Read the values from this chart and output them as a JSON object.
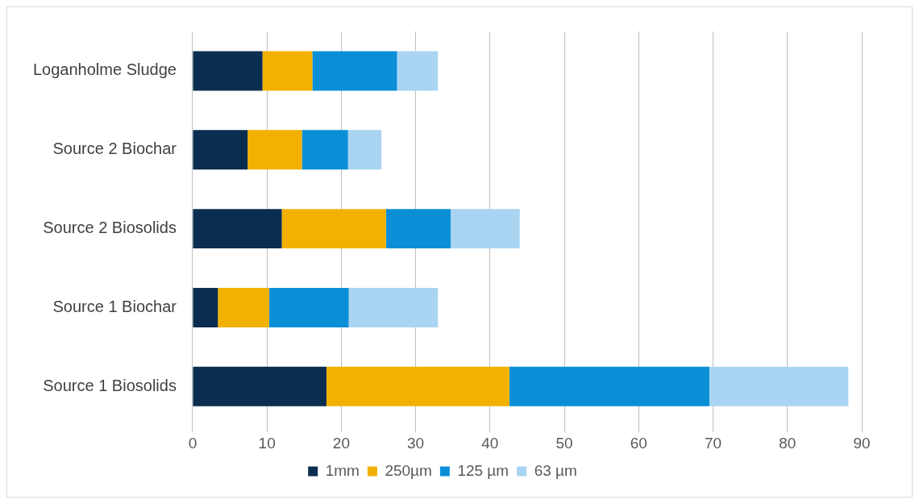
{
  "chart_data": {
    "type": "bar",
    "orientation": "horizontal",
    "stacked": true,
    "categories": [
      "Loganholme Sludge",
      "Source 2 Biochar",
      "Source 2 Biosolids",
      "Source 1 Biochar",
      "Source 1 Biosolids"
    ],
    "series": [
      {
        "name": "1mm",
        "color": "#0b2d4f",
        "values": [
          9.4,
          7.4,
          12.0,
          3.4,
          18.0
        ]
      },
      {
        "name": "250µm",
        "color": "#f2b100",
        "values": [
          6.7,
          7.3,
          14.0,
          6.9,
          24.6
        ]
      },
      {
        "name": "125 µm",
        "color": "#0a8fd6",
        "values": [
          11.4,
          6.2,
          8.7,
          10.7,
          26.9
        ]
      },
      {
        "name": "63 µm",
        "color": "#a9d5f2",
        "values": [
          5.5,
          4.5,
          9.3,
          12.0,
          18.7
        ]
      }
    ],
    "xlim": [
      0,
      90
    ],
    "xticks": [
      0,
      10,
      20,
      30,
      40,
      50,
      60,
      70,
      80,
      90
    ],
    "grid": "x",
    "legend": "bottom"
  }
}
